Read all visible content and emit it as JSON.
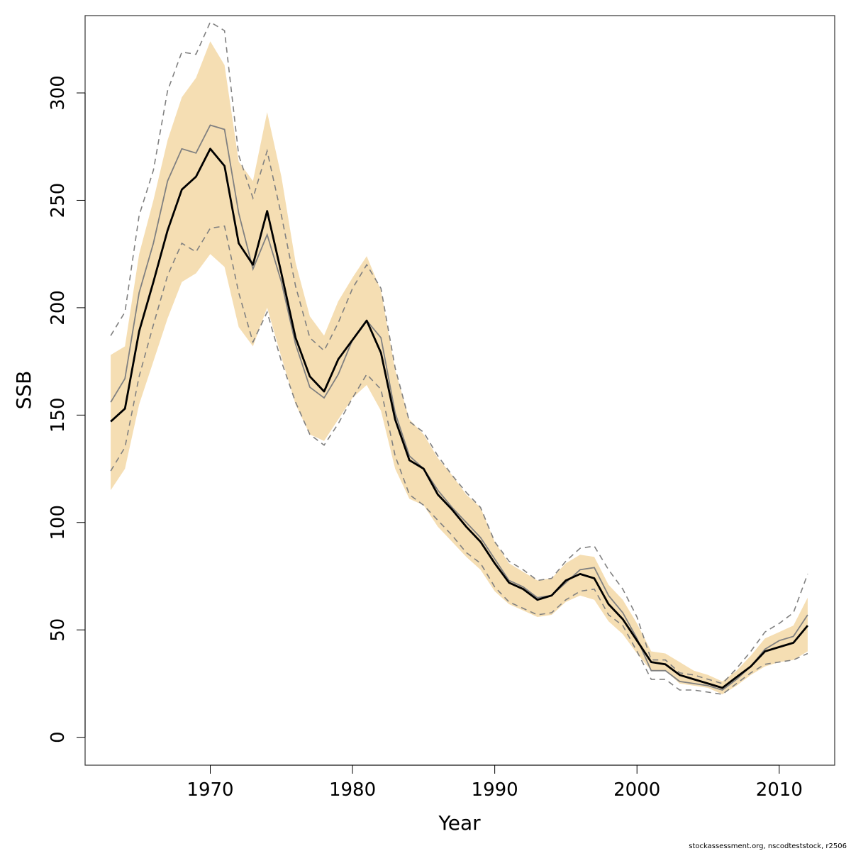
{
  "chart_data": {
    "type": "line",
    "xlabel": "Year",
    "ylabel": "SSB",
    "xlim": [
      1961.2,
      2013.9
    ],
    "ylim": [
      -13,
      336
    ],
    "x_ticks": [
      1970,
      1980,
      1990,
      2000,
      2010
    ],
    "y_ticks": [
      0,
      50,
      100,
      150,
      200,
      250,
      300
    ],
    "footer": "stockassessment.org, nscodteststock, r2506",
    "colors": {
      "band": "#f5deb3",
      "main": "#000000",
      "alt": "#808080"
    },
    "x": [
      1963,
      1964,
      1965,
      1966,
      1967,
      1968,
      1969,
      1970,
      1971,
      1972,
      1973,
      1974,
      1975,
      1976,
      1977,
      1978,
      1979,
      1980,
      1981,
      1982,
      1983,
      1984,
      1985,
      1986,
      1987,
      1988,
      1989,
      1990,
      1991,
      1992,
      1993,
      1994,
      1995,
      1996,
      1997,
      1998,
      1999,
      2000,
      2001,
      2002,
      2003,
      2004,
      2005,
      2006,
      2007,
      2008,
      2009,
      2010,
      2011,
      2012
    ],
    "series": [
      {
        "role": "main estimate",
        "style": "solid-thick",
        "values": [
          147,
          153,
          189,
          212,
          236,
          255,
          261,
          274,
          266,
          230,
          220,
          245,
          216,
          186,
          168,
          161,
          176,
          185,
          194,
          179,
          148,
          129,
          125,
          113,
          106,
          98,
          91,
          81,
          72,
          69,
          64,
          66,
          73,
          76,
          74,
          62,
          55,
          45,
          35,
          34,
          29,
          27,
          25,
          23,
          28,
          33,
          40,
          42,
          44,
          52
        ]
      },
      {
        "role": "main lower bound",
        "style": "band-lower",
        "values": [
          115,
          125,
          155,
          175,
          195,
          212,
          216,
          225,
          219,
          191,
          182,
          200,
          177,
          155,
          141,
          138,
          148,
          158,
          164,
          152,
          125,
          111,
          108,
          98,
          91,
          84,
          78,
          68,
          62,
          59,
          56,
          57,
          63,
          66,
          64,
          54,
          48,
          39,
          31,
          31,
          25,
          24,
          23,
          20,
          24,
          29,
          33,
          35,
          36,
          40
        ]
      },
      {
        "role": "main upper bound",
        "style": "band-upper",
        "values": [
          178,
          182,
          225,
          250,
          278,
          298,
          307,
          324,
          313,
          268,
          259,
          291,
          261,
          221,
          196,
          187,
          203,
          214,
          224,
          208,
          171,
          148,
          141,
          130,
          122,
          113,
          107,
          91,
          81,
          77,
          73,
          74,
          81,
          85,
          84,
          71,
          64,
          53,
          40,
          39,
          35,
          31,
          29,
          26,
          31,
          38,
          46,
          49,
          52,
          65
        ]
      },
      {
        "role": "alternative estimate",
        "style": "solid-thin",
        "values": [
          156,
          167,
          207,
          230,
          259,
          274,
          272,
          285,
          283,
          244,
          218,
          234,
          212,
          183,
          163,
          158,
          169,
          185,
          194,
          186,
          151,
          131,
          125,
          115,
          107,
          100,
          93,
          83,
          73,
          70,
          65,
          66,
          72,
          78,
          79,
          66,
          58,
          46,
          31,
          31,
          26,
          25,
          24,
          22,
          27,
          33,
          41,
          45,
          47,
          57
        ]
      },
      {
        "role": "alternative lower bound",
        "style": "dashed",
        "values": [
          124,
          135,
          168,
          192,
          215,
          230,
          226,
          237,
          238,
          207,
          184,
          198,
          175,
          156,
          141,
          136,
          146,
          158,
          169,
          162,
          131,
          113,
          108,
          101,
          94,
          86,
          81,
          70,
          63,
          60,
          57,
          58,
          64,
          68,
          69,
          57,
          52,
          40,
          27,
          27,
          22,
          22,
          21,
          20,
          25,
          30,
          34,
          35,
          36,
          39
        ]
      },
      {
        "role": "alternative upper bound",
        "style": "dashed",
        "values": [
          187,
          198,
          243,
          264,
          301,
          319,
          318,
          333,
          329,
          271,
          251,
          273,
          243,
          210,
          186,
          180,
          193,
          209,
          220,
          209,
          172,
          147,
          142,
          131,
          122,
          114,
          107,
          91,
          82,
          78,
          73,
          74,
          82,
          88,
          89,
          78,
          69,
          56,
          36,
          36,
          30,
          29,
          27,
          25,
          32,
          40,
          49,
          53,
          58,
          76
        ]
      }
    ]
  }
}
